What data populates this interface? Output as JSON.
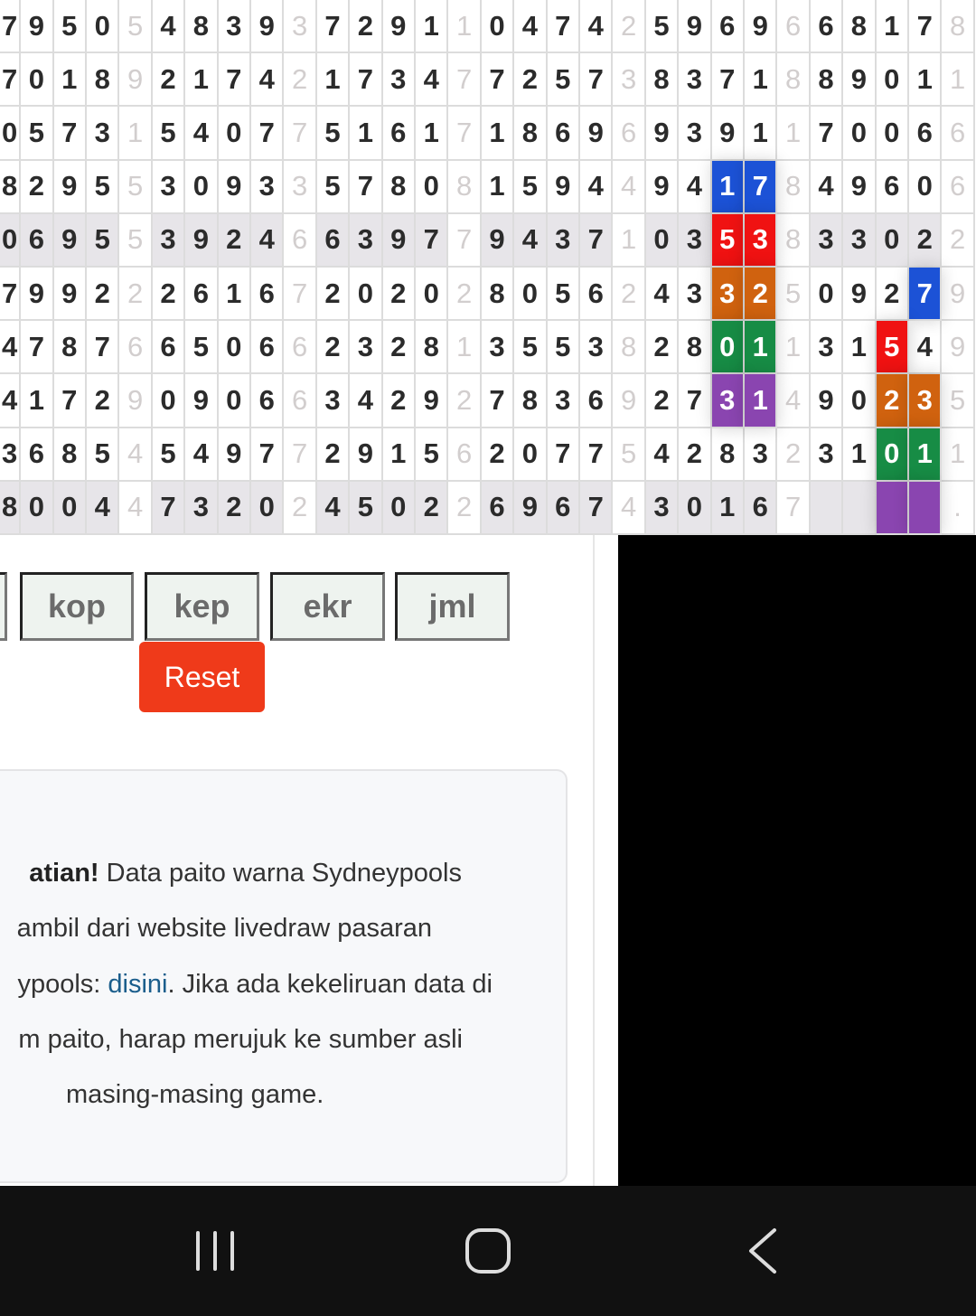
{
  "grid": {
    "rows": [
      [
        "7",
        "9",
        "5",
        "0",
        "5",
        "4",
        "8",
        "3",
        "9",
        "3",
        "7",
        "2",
        "9",
        "1",
        "1",
        "0",
        "4",
        "7",
        "4",
        "2",
        "5",
        "9",
        "6",
        "9",
        "6",
        "6",
        "8",
        "1",
        "7",
        "8"
      ],
      [
        "7",
        "0",
        "1",
        "8",
        "9",
        "2",
        "1",
        "7",
        "4",
        "2",
        "1",
        "7",
        "3",
        "4",
        "7",
        "7",
        "2",
        "5",
        "7",
        "3",
        "8",
        "3",
        "7",
        "1",
        "8",
        "8",
        "9",
        "0",
        "1",
        "1"
      ],
      [
        "0",
        "5",
        "7",
        "3",
        "1",
        "5",
        "4",
        "0",
        "7",
        "7",
        "5",
        "1",
        "6",
        "1",
        "7",
        "1",
        "8",
        "6",
        "9",
        "6",
        "9",
        "3",
        "9",
        "1",
        "1",
        "7",
        "0",
        "0",
        "6",
        "6"
      ],
      [
        "8",
        "2",
        "9",
        "5",
        "5",
        "3",
        "0",
        "9",
        "3",
        "3",
        "5",
        "7",
        "8",
        "0",
        "8",
        "1",
        "5",
        "9",
        "4",
        "4",
        "9",
        "4",
        "1",
        "7",
        "8",
        "4",
        "9",
        "6",
        "0",
        "6"
      ],
      [
        "0",
        "6",
        "9",
        "5",
        "5",
        "3",
        "9",
        "2",
        "4",
        "6",
        "6",
        "3",
        "9",
        "7",
        "7",
        "9",
        "4",
        "3",
        "7",
        "1",
        "0",
        "3",
        "5",
        "3",
        "8",
        "3",
        "3",
        "0",
        "2",
        "2"
      ],
      [
        "7",
        "9",
        "9",
        "2",
        "2",
        "2",
        "6",
        "1",
        "6",
        "7",
        "2",
        "0",
        "2",
        "0",
        "2",
        "8",
        "0",
        "5",
        "6",
        "2",
        "4",
        "3",
        "3",
        "2",
        "5",
        "0",
        "9",
        "2",
        "7",
        "9"
      ],
      [
        "4",
        "7",
        "8",
        "7",
        "6",
        "6",
        "5",
        "0",
        "6",
        "6",
        "2",
        "3",
        "2",
        "8",
        "1",
        "3",
        "5",
        "5",
        "3",
        "8",
        "2",
        "8",
        "0",
        "1",
        "1",
        "3",
        "1",
        "5",
        "4",
        "9"
      ],
      [
        "4",
        "1",
        "7",
        "2",
        "9",
        "0",
        "9",
        "0",
        "6",
        "6",
        "3",
        "4",
        "2",
        "9",
        "2",
        "7",
        "8",
        "3",
        "6",
        "9",
        "2",
        "7",
        "3",
        "1",
        "4",
        "9",
        "0",
        "2",
        "3",
        "5"
      ],
      [
        "3",
        "6",
        "8",
        "5",
        "4",
        "5",
        "4",
        "9",
        "7",
        "7",
        "2",
        "9",
        "1",
        "5",
        "6",
        "2",
        "0",
        "7",
        "7",
        "5",
        "4",
        "2",
        "8",
        "3",
        "2",
        "3",
        "1",
        "0",
        "1",
        "1"
      ],
      [
        "8",
        "0",
        "0",
        "4",
        "4",
        "7",
        "3",
        "2",
        "0",
        "2",
        "4",
        "5",
        "0",
        "2",
        "2",
        "6",
        "9",
        "6",
        "7",
        "4",
        "3",
        "0",
        "1",
        "6",
        "7",
        "",
        "",
        "",
        "",
        "."
      ]
    ],
    "striped_rows": [
      4,
      9
    ],
    "colors": {
      "blue": "#1c52d6",
      "red": "#f01212",
      "orange": "#d0620f",
      "green": "#178c45",
      "purple": "#8a45b0"
    },
    "highlights": [
      {
        "row": 3,
        "col": 22,
        "color": "blue"
      },
      {
        "row": 3,
        "col": 23,
        "color": "blue"
      },
      {
        "row": 4,
        "col": 22,
        "color": "red"
      },
      {
        "row": 4,
        "col": 23,
        "color": "red"
      },
      {
        "row": 5,
        "col": 22,
        "color": "orange"
      },
      {
        "row": 5,
        "col": 23,
        "color": "orange"
      },
      {
        "row": 5,
        "col": 28,
        "color": "blue"
      },
      {
        "row": 6,
        "col": 22,
        "color": "green"
      },
      {
        "row": 6,
        "col": 23,
        "color": "green"
      },
      {
        "row": 6,
        "col": 27,
        "color": "red"
      },
      {
        "row": 7,
        "col": 22,
        "color": "purple"
      },
      {
        "row": 7,
        "col": 23,
        "color": "purple"
      },
      {
        "row": 7,
        "col": 27,
        "color": "orange"
      },
      {
        "row": 7,
        "col": 28,
        "color": "orange"
      },
      {
        "row": 8,
        "col": 27,
        "color": "green"
      },
      {
        "row": 8,
        "col": 28,
        "color": "green"
      },
      {
        "row": 9,
        "col": 27,
        "color": "purple"
      },
      {
        "row": 9,
        "col": 28,
        "color": "purple"
      }
    ]
  },
  "buttons": {
    "kop": "kop",
    "kep": "kep",
    "ekr": "ekr",
    "jml": "jml",
    "reset": "Reset",
    "reset_color": "#ef3a1a"
  },
  "notice": {
    "line1_bold": "atian!",
    "line1_rest": " Data paito warna Sydneypools",
    "line2": "ambil dari website livedraw pasaran",
    "line3_pre": "ypools: ",
    "line3_link": "disini",
    "line3_post": ". Jika ada kekeliruan data di",
    "line4": "m paito, harap merujuk ke sumber asli",
    "line5": "masing-masing game."
  },
  "navbar": {
    "icons": [
      "recent-apps-icon",
      "home-icon",
      "back-icon"
    ]
  }
}
